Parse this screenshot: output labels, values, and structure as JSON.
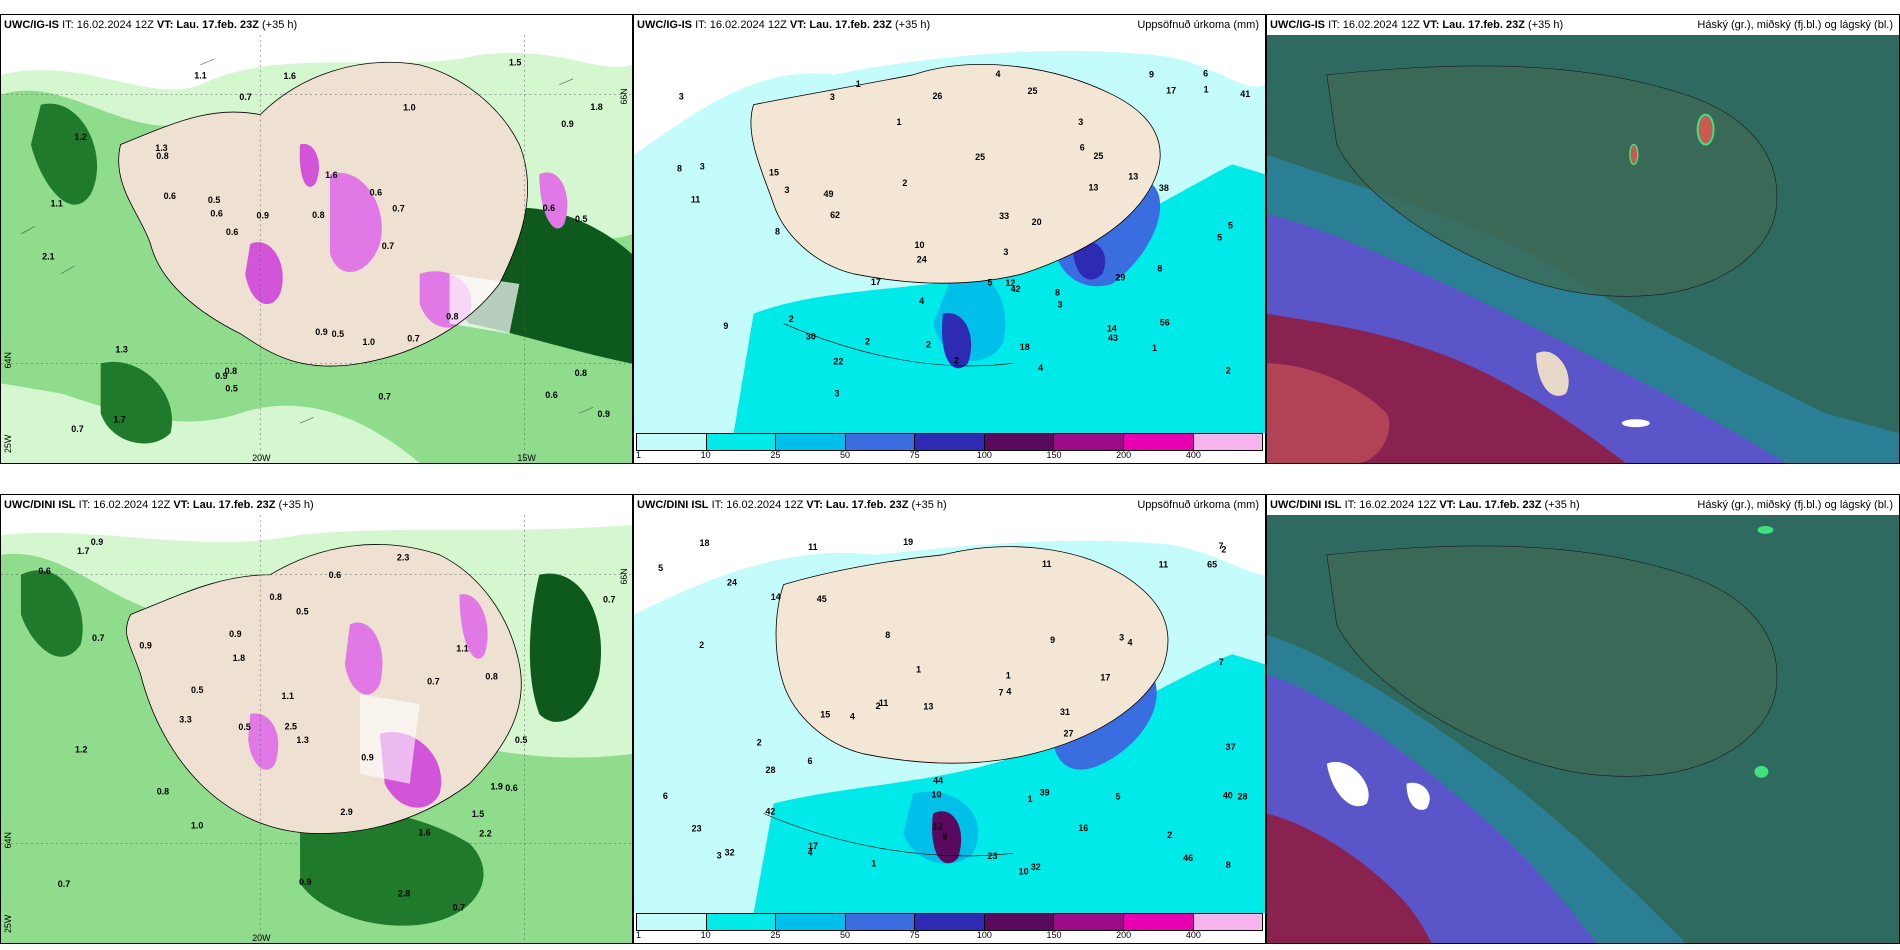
{
  "panels": [
    {
      "model": "UWC/IG-IS",
      "it": "IT: 16.02.2024 12Z",
      "vt": "VT: Lau. 17.feb. 23Z",
      "lead": "(+35 h)",
      "title": ""
    },
    {
      "model": "UWC/IG-IS",
      "it": "IT: 16.02.2024 12Z",
      "vt": "VT: Lau. 17.feb. 23Z",
      "lead": "(+35 h)",
      "title": "Uppsöfnuð úrkoma (mm)"
    },
    {
      "model": "UWC/IG-IS",
      "it": "IT: 16.02.2024 12Z",
      "vt": "VT: Lau. 17.feb. 23Z",
      "lead": "(+35 h)",
      "title": "Háský (gr.), miðský (fj.bl.) og lágský (bl.)"
    },
    {
      "model": "UWC/DINI ISL",
      "it": "IT: 16.02.2024 12Z",
      "vt": "VT: Lau. 17.feb. 23Z",
      "lead": "(+35 h)",
      "title": ""
    },
    {
      "model": "UWC/DINI ISL",
      "it": "IT: 16.02.2024 12Z",
      "vt": "VT: Lau. 17.feb. 23Z",
      "lead": "(+35 h)",
      "title": "Uppsöfnuð úrkoma (mm)"
    },
    {
      "model": "UWC/DINI ISL",
      "it": "IT: 16.02.2024 12Z",
      "vt": "VT: Lau. 17.feb. 23Z",
      "lead": "(+35 h)",
      "title": "Háský (gr.), miðský (fj.bl.) og lágský (bl.)"
    }
  ],
  "precip_legend": {
    "ticks": [
      "1",
      "10",
      "25",
      "50",
      "75",
      "100",
      "150",
      "200",
      "400"
    ],
    "colors": [
      "#c4fbfb",
      "#00eaea",
      "#00bfe8",
      "#3a6ee0",
      "#2e2ab4",
      "#5a0a5e",
      "#9c0a8a",
      "#e800b0",
      "#f6b4ee"
    ]
  },
  "grid_labels": {
    "lon_20": "20W",
    "lon_15": "15W",
    "lon_25": "25W",
    "lat_64": "64N",
    "lat_66": "66N"
  },
  "top_precip_values": [
    "4",
    "3",
    "2",
    "15",
    "13",
    "18",
    "5",
    "62",
    "24",
    "30",
    "9",
    "8",
    "10",
    "12",
    "13",
    "9",
    "11",
    "17",
    "29",
    "38",
    "14",
    "42",
    "22",
    "43",
    "20",
    "25",
    "8",
    "3",
    "2",
    "1",
    "3",
    "6",
    "3",
    "2",
    "1",
    "2",
    "4",
    "3",
    "5",
    "8",
    "26",
    "33",
    "41",
    "56",
    "25",
    "8",
    "5",
    "4",
    "3",
    "1",
    "17",
    "25",
    "49",
    "6",
    "3",
    "2",
    "1",
    "2",
    "3"
  ],
  "bottom_precip_values": [
    "1",
    "10",
    "17",
    "16",
    "11",
    "24",
    "15",
    "46",
    "19",
    "8",
    "11",
    "9",
    "11",
    "10",
    "11",
    "7",
    "2",
    "4",
    "4",
    "5",
    "1",
    "2",
    "1",
    "3",
    "4",
    "2",
    "6",
    "28",
    "18",
    "27",
    "13",
    "32",
    "44",
    "65",
    "42",
    "31",
    "40",
    "23",
    "9",
    "2",
    "4",
    "17",
    "28",
    "32",
    "45",
    "39",
    "37",
    "23",
    "14",
    "12",
    "7",
    "7",
    "8",
    "5",
    "6",
    "3",
    "2",
    "1"
  ],
  "top_wind_values": [
    "0.7",
    "0.8",
    "1.1",
    "0.6",
    "0.8",
    "0.7",
    "0.7",
    "0.8",
    "0.9",
    "0.5",
    "0.6",
    "0.5",
    "0.6",
    "0.8",
    "1.0",
    "0.9",
    "1.2",
    "0.7",
    "0.6",
    "1.3",
    "0.9",
    "0.5",
    "0.6",
    "1.6",
    "1.8",
    "0.7",
    "1.5",
    "1.7",
    "1.0",
    "0.9",
    "0.8",
    "0.5",
    "1.3",
    "1.6",
    "2.1",
    "0.9",
    "0.6",
    "1.1",
    "0.7"
  ],
  "bottom_wind_values": [
    "0.6",
    "0.9",
    "1.8",
    "0.5",
    "2.3",
    "2.8",
    "3.3",
    "0.7",
    "0.9",
    "1.9",
    "0.7",
    "0.5",
    "0.9",
    "1.7",
    "0.8",
    "0.6",
    "0.9",
    "1.1",
    "0.7",
    "0.5",
    "0.8",
    "0.6",
    "0.9",
    "0.7",
    "1.0",
    "1.3",
    "2.5",
    "1.2",
    "0.8",
    "2.9",
    "2.2",
    "1.5",
    "1.1",
    "1.6",
    "0.7",
    "0.5"
  ]
}
